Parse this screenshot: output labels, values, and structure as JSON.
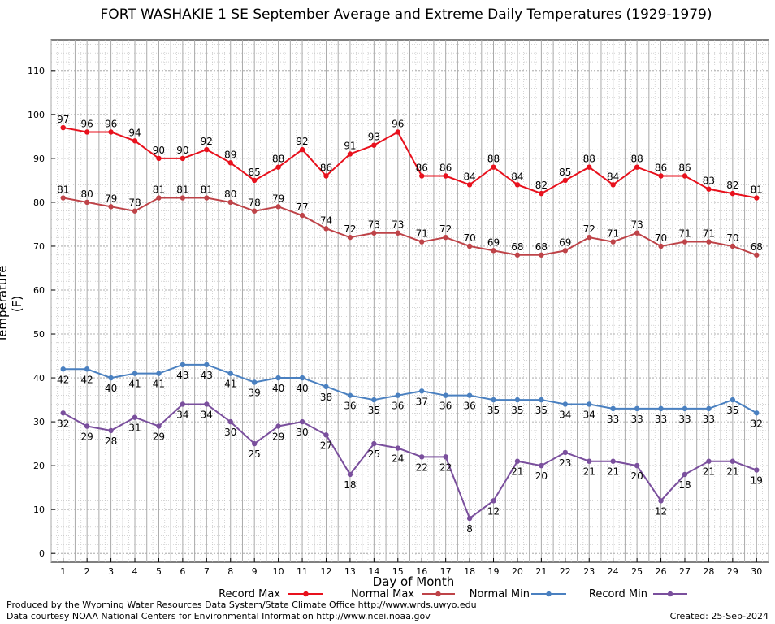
{
  "title": "FORT WASHAKIE 1 SE September Average and Extreme Daily Temperatures (1929-1979)",
  "ylabel": "Temperature (F)",
  "xlabel": "Day of Month",
  "footer": {
    "produced_by": "Produced by the Wyoming Water Resources Data System/State Climate Office http://www.wrds.uwyo.edu",
    "courtesy": "Data courtesy NOAA National Centers for Environmental Information http://www.ncei.noaa.gov",
    "created": "Created:  25-Sep-2024"
  },
  "chart_data": {
    "type": "line",
    "title": "FORT WASHAKIE 1 SE September Average and Extreme Daily Temperatures (1929-1979)",
    "xlabel": "Day of Month",
    "ylabel": "Temperature (F)",
    "x": [
      1,
      2,
      3,
      4,
      5,
      6,
      7,
      8,
      9,
      10,
      11,
      12,
      13,
      14,
      15,
      16,
      17,
      18,
      19,
      20,
      21,
      22,
      23,
      24,
      25,
      26,
      27,
      28,
      29,
      30
    ],
    "ylim": [
      -2,
      117
    ],
    "yticks": [
      0,
      10,
      20,
      30,
      40,
      50,
      60,
      70,
      80,
      90,
      100,
      110
    ],
    "grid": true,
    "legend": "bottom",
    "series": [
      {
        "name": "Record Max",
        "color": "#e8111d",
        "label_pos": "above",
        "values": [
          97,
          96,
          96,
          94,
          90,
          90,
          92,
          89,
          85,
          88,
          92,
          86,
          91,
          93,
          96,
          86,
          86,
          84,
          88,
          84,
          82,
          85,
          88,
          84,
          88,
          86,
          86,
          83,
          82,
          81
        ]
      },
      {
        "name": "Normal Max",
        "color": "#be4348",
        "label_pos": "above",
        "values": [
          81,
          80,
          79,
          78,
          81,
          81,
          81,
          80,
          78,
          79,
          77,
          74,
          72,
          73,
          73,
          71,
          72,
          70,
          69,
          68,
          68,
          69,
          72,
          71,
          73,
          70,
          71,
          71,
          70,
          68
        ]
      },
      {
        "name": "Normal Min",
        "color": "#4a80c0",
        "label_pos": "below",
        "values": [
          42,
          42,
          40,
          41,
          41,
          43,
          43,
          41,
          39,
          40,
          40,
          38,
          36,
          35,
          36,
          37,
          36,
          36,
          35,
          35,
          35,
          34,
          34,
          33,
          33,
          33,
          33,
          33,
          35,
          32
        ]
      },
      {
        "name": "Record Min",
        "color": "#7a4f9d",
        "label_pos": "below",
        "values": [
          32,
          29,
          28,
          31,
          29,
          34,
          34,
          30,
          25,
          29,
          30,
          27,
          18,
          25,
          24,
          22,
          22,
          8,
          12,
          21,
          20,
          23,
          21,
          21,
          20,
          12,
          18,
          21,
          21,
          19
        ]
      }
    ]
  }
}
